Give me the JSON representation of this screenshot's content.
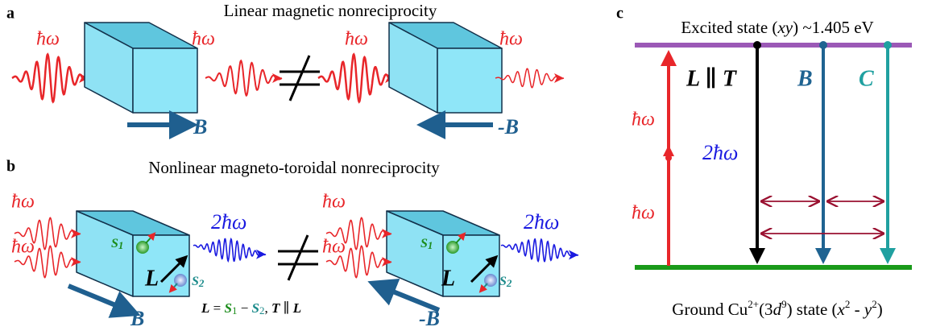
{
  "panel_a": {
    "label": "a",
    "title": "Linear magnetic nonreciprocity",
    "photon_labels": [
      "ħω",
      "ħω",
      "ħω",
      "ħω"
    ],
    "field_labels": [
      "B",
      "-B"
    ]
  },
  "panel_b": {
    "label": "b",
    "title": "Nonlinear magneto-toroidal nonreciprocity",
    "photon_labels": [
      "ħω",
      "ħω",
      "ħω",
      "ħω"
    ],
    "shg_labels": [
      "2ħω",
      "2ħω"
    ],
    "field_labels": [
      "B",
      "-B"
    ],
    "cube_labels": [
      {
        "L": "L",
        "S1": [
          "S",
          "1"
        ],
        "S2": [
          "S",
          "2"
        ]
      },
      {
        "L": "L",
        "S1": [
          "S",
          "1"
        ],
        "S2": [
          "S",
          "2"
        ]
      }
    ],
    "equation": [
      "L",
      " = ",
      "S",
      "1",
      " − ",
      "S",
      "2",
      ", ",
      "T",
      " ∥ ",
      "L"
    ]
  },
  "panel_c": {
    "label": "c",
    "excited_state": [
      "Excited state (",
      "xy",
      ") ~1.405 eV"
    ],
    "ground_state": [
      "Ground Cu",
      "2+",
      "(3",
      "d",
      "9",
      ") state (",
      "x",
      "2",
      " - ",
      "y",
      "2",
      ")"
    ],
    "transitions": [
      "L ∥ T",
      "B",
      "C"
    ],
    "photon_labels": [
      "ħω",
      "ħω"
    ],
    "shg_label": "2ħω"
  }
}
